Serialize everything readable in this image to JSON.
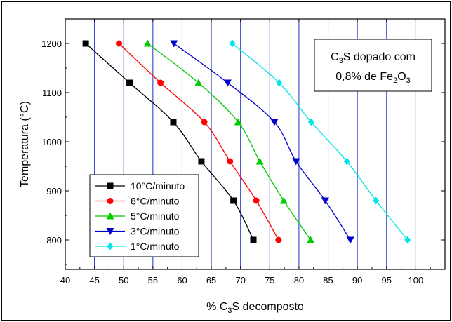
{
  "chart_data": {
    "type": "line",
    "xlabel_parts": [
      "% C",
      "3",
      "S decomposto"
    ],
    "ylabel": "Temperatura (°C)",
    "xlim": [
      40,
      105
    ],
    "ylim": [
      740,
      1250
    ],
    "xticks": [
      40,
      45,
      50,
      55,
      60,
      65,
      70,
      75,
      80,
      85,
      90,
      95,
      100
    ],
    "yticks": [
      800,
      900,
      1000,
      1100,
      1200
    ],
    "grid": "vertical-blue",
    "annotation": {
      "line1_parts": [
        "C",
        "3",
        "S dopado com"
      ],
      "line2_parts": [
        "0,8% de Fe",
        "2",
        "O",
        "3"
      ]
    },
    "legend_position": "bottom-left",
    "series": [
      {
        "name": "10°C/minuto",
        "color": "#000000",
        "marker": "square",
        "points": [
          [
            43.5,
            1200
          ],
          [
            51,
            1120
          ],
          [
            58.5,
            1040
          ],
          [
            63.3,
            960
          ],
          [
            68.8,
            880
          ],
          [
            72.2,
            800
          ]
        ]
      },
      {
        "name": "8°C/minuto",
        "color": "#ff0000",
        "marker": "circle",
        "points": [
          [
            49.2,
            1200
          ],
          [
            56.3,
            1120
          ],
          [
            63.8,
            1040
          ],
          [
            68.2,
            960
          ],
          [
            72.7,
            880
          ],
          [
            76.5,
            800
          ]
        ]
      },
      {
        "name": "5°C/minuto",
        "color": "#00cc00",
        "marker": "triangle-up",
        "points": [
          [
            54.1,
            1200
          ],
          [
            62.8,
            1120
          ],
          [
            69.6,
            1040
          ],
          [
            73.3,
            960
          ],
          [
            77.4,
            880
          ],
          [
            82,
            800
          ]
        ]
      },
      {
        "name": "3°C/minuto",
        "color": "#0000cc",
        "marker": "triangle-down",
        "points": [
          [
            58.6,
            1200
          ],
          [
            67.8,
            1120
          ],
          [
            75.8,
            1040
          ],
          [
            79.5,
            960
          ],
          [
            84.5,
            880
          ],
          [
            88.8,
            800
          ]
        ]
      },
      {
        "name": "1°C/minuto",
        "color": "#00e5e5",
        "marker": "diamond",
        "points": [
          [
            68.6,
            1200
          ],
          [
            76.6,
            1120
          ],
          [
            82.1,
            1040
          ],
          [
            88.2,
            960
          ],
          [
            93.2,
            880
          ],
          [
            98.6,
            800
          ]
        ]
      }
    ]
  }
}
